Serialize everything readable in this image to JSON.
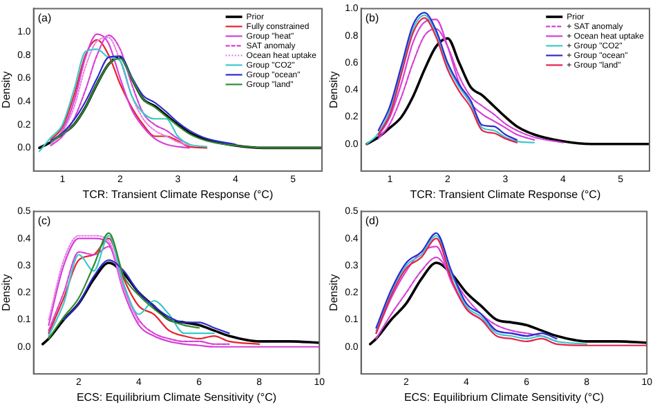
{
  "chart_data": [
    {
      "type": "line",
      "annotations": [
        "(a)"
      ],
      "xlabel": "TCR: Transient Climate Response (°C)",
      "ylabel": "Density",
      "legend": "top right",
      "xlim": [
        0.5,
        5.5
      ],
      "xticks": [
        1,
        2,
        3,
        4,
        5
      ],
      "ylim": [
        -0.2,
        1.2
      ],
      "yticks": [
        {
          "value": 0,
          "label": "0.0"
        },
        {
          "value": 0.2,
          "label": "0.2"
        },
        {
          "value": 0.4,
          "label": "0.4"
        },
        {
          "value": 0.6,
          "label": "0.6"
        },
        {
          "value": 0.8,
          "label": "0.8"
        },
        {
          "value": 1,
          "label": "1.0"
        }
      ],
      "x": [
        0.6,
        0.8,
        1.0,
        1.2,
        1.4,
        1.6,
        1.8,
        2.0,
        2.2,
        2.4,
        2.6,
        2.8,
        3.0,
        3.2,
        3.5,
        4.0,
        4.5,
        5.0,
        5.5
      ],
      "series": [
        {
          "name": "Prior",
          "color": "#000000",
          "values": [
            0,
            0.05,
            0.12,
            0.2,
            0.35,
            0.55,
            0.72,
            0.78,
            0.6,
            0.42,
            0.36,
            0.28,
            0.2,
            0.13,
            0.07,
            0.02,
            0,
            0,
            0
          ]
        },
        {
          "name": "Fully constrained",
          "color": "#e8202a",
          "values": [
            null,
            0.07,
            0.18,
            0.45,
            0.8,
            0.93,
            0.8,
            0.55,
            0.35,
            0.2,
            0.1,
            0.1,
            0.06,
            0.01,
            0,
            null,
            null,
            null,
            null
          ]
        },
        {
          "name": "Group \"heat\"",
          "color": "#d63fd6",
          "values": [
            null,
            0.04,
            0.15,
            0.4,
            0.78,
            0.98,
            0.9,
            0.6,
            0.33,
            0.18,
            0.08,
            0.03,
            0.01,
            0,
            null,
            null,
            null,
            null,
            null
          ]
        },
        {
          "name": "SAT anomaly",
          "color": "#d63fd6",
          "line_style": "dashed",
          "values": [
            null,
            0.02,
            0.1,
            0.25,
            0.5,
            0.8,
            0.97,
            0.85,
            0.55,
            0.3,
            0.2,
            0.15,
            0.08,
            0.03,
            null,
            null,
            null,
            null,
            null
          ]
        },
        {
          "name": "Ocean heat uptake",
          "color": "#e87fe8",
          "line_style": "dotted",
          "values": [
            null,
            0.03,
            0.14,
            0.35,
            0.7,
            0.92,
            0.95,
            0.75,
            0.45,
            0.25,
            0.15,
            0.1,
            0.05,
            0.02,
            null,
            null,
            null,
            null,
            null
          ]
        },
        {
          "name": "Group \"CO2\"",
          "color": "#3cc8c8",
          "values": [
            -0.03,
            0.09,
            0.2,
            0.5,
            0.83,
            0.85,
            0.78,
            0.75,
            0.45,
            0.3,
            0.25,
            0.25,
            0.1,
            0.03,
            0.01,
            null,
            null,
            null,
            null
          ]
        },
        {
          "name": "Group \"ocean\"",
          "color": "#2b2bd0",
          "values": [
            null,
            0.06,
            0.13,
            0.24,
            0.4,
            0.6,
            0.78,
            0.79,
            0.61,
            0.45,
            0.39,
            0.31,
            0.22,
            0.15,
            0.08,
            0.03,
            null,
            null,
            null
          ]
        },
        {
          "name": "Group \"land\"",
          "color": "#2e8b2e",
          "values": [
            null,
            0.05,
            0.12,
            0.2,
            0.35,
            0.55,
            0.72,
            0.77,
            0.6,
            0.42,
            0.35,
            0.27,
            0.19,
            0.12,
            0.06,
            0.02,
            0,
            0,
            0
          ]
        }
      ]
    },
    {
      "type": "line",
      "annotations": [
        "(b)"
      ],
      "xlabel": "TCR: Transient Climate Response (°C)",
      "ylabel": "Density",
      "legend": "top right",
      "xlim": [
        0.5,
        5.5
      ],
      "xticks": [
        1,
        2,
        3,
        4,
        5
      ],
      "ylim": [
        -0.2,
        1.0
      ],
      "yticks": [
        {
          "value": 0,
          "label": "0.0"
        },
        {
          "value": 0.2,
          "label": "0.2"
        },
        {
          "value": 0.4,
          "label": "0.4"
        },
        {
          "value": 0.6,
          "label": "0.6"
        },
        {
          "value": 0.8,
          "label": "0.8"
        },
        {
          "value": 1,
          "label": "1.0"
        }
      ],
      "x": [
        0.6,
        0.8,
        1.0,
        1.2,
        1.4,
        1.6,
        1.8,
        2.0,
        2.2,
        2.4,
        2.6,
        2.8,
        3.0,
        3.2,
        3.5,
        4.0,
        4.5,
        5.0,
        5.5
      ],
      "series": [
        {
          "name": "Prior",
          "color": "#000000",
          "values": [
            0,
            0.05,
            0.12,
            0.2,
            0.35,
            0.55,
            0.72,
            0.78,
            0.6,
            0.42,
            0.36,
            0.28,
            0.2,
            0.13,
            0.07,
            0.02,
            0,
            0,
            0
          ]
        },
        {
          "name": "+ SAT anomaly",
          "color": "#d63fd6",
          "line_style": "dashed",
          "values": [
            null,
            0.04,
            0.15,
            0.35,
            0.6,
            0.8,
            0.85,
            0.72,
            0.5,
            0.35,
            0.28,
            0.22,
            0.15,
            0.1,
            0.05,
            0.01,
            null,
            null,
            null
          ]
        },
        {
          "name": "+ Ocean heat uptake",
          "color": "#d63fd6",
          "values": [
            null,
            0.06,
            0.2,
            0.45,
            0.75,
            0.9,
            0.92,
            0.72,
            0.45,
            0.3,
            0.22,
            0.17,
            0.12,
            0.07,
            0.03,
            null,
            null,
            null,
            null
          ]
        },
        {
          "name": "+ Group \"CO2\"",
          "color": "#3cc8c8",
          "values": [
            0,
            0.08,
            0.25,
            0.55,
            0.85,
            0.95,
            0.82,
            0.58,
            0.42,
            0.3,
            0.12,
            0.1,
            0.05,
            0.02,
            0.01,
            null,
            null,
            null,
            null
          ]
        },
        {
          "name": "+ Group \"ocean\"",
          "color": "#2b2bd0",
          "values": [
            null,
            0.1,
            0.28,
            0.58,
            0.88,
            0.97,
            0.84,
            0.6,
            0.44,
            0.32,
            0.14,
            0.13,
            0.07,
            0.03,
            null,
            null,
            null,
            null,
            null
          ]
        },
        {
          "name": "+ Group \"land\"",
          "color": "#e8204a",
          "values": [
            null,
            0.07,
            0.22,
            0.52,
            0.82,
            0.93,
            0.79,
            0.55,
            0.39,
            0.27,
            0.1,
            0.08,
            0.04,
            0.01,
            null,
            null,
            null,
            null,
            null
          ]
        }
      ]
    },
    {
      "type": "line",
      "annotations": [
        "(c)"
      ],
      "xlabel": "ECS: Equilibrium Climate Sensitivity (°C)",
      "ylabel": "Density",
      "xlim": [
        0.5,
        10
      ],
      "xticks": [
        2,
        4,
        6,
        8,
        10
      ],
      "ylim": [
        -0.1,
        0.5
      ],
      "yticks": [
        {
          "value": 0,
          "label": "0.0"
        },
        {
          "value": 0.1,
          "label": "0.1"
        },
        {
          "value": 0.2,
          "label": "0.2"
        },
        {
          "value": 0.3,
          "label": "0.3"
        },
        {
          "value": 0.4,
          "label": "0.4"
        },
        {
          "value": 0.5,
          "label": "0.5"
        }
      ],
      "x": [
        0.8,
        1.0,
        1.5,
        2.0,
        2.5,
        3.0,
        3.5,
        4.0,
        4.5,
        5.0,
        5.5,
        6.0,
        6.5,
        7.0,
        8.0,
        9.0,
        10.0
      ],
      "series": [
        {
          "color": "#000000",
          "values": [
            0.01,
            0.03,
            0.1,
            0.16,
            0.25,
            0.31,
            0.27,
            0.2,
            0.15,
            0.1,
            0.09,
            0.08,
            0.06,
            0.04,
            0.02,
            0.02,
            0.015
          ]
        },
        {
          "color": "#e8202a",
          "values": [
            null,
            0.05,
            0.18,
            0.32,
            0.34,
            0.4,
            0.25,
            0.15,
            0.12,
            0.06,
            0.04,
            0.03,
            0.04,
            0.02,
            0.01,
            null,
            null
          ]
        },
        {
          "color": "#d63fd6",
          "values": [
            null,
            0.08,
            0.3,
            0.4,
            0.4,
            0.38,
            0.2,
            0.08,
            0.04,
            0.02,
            0.01,
            0.005,
            0,
            0,
            0,
            0,
            0
          ]
        },
        {
          "color": "#d63fd6",
          "line_style": "dashed",
          "values": [
            null,
            0.06,
            0.2,
            0.35,
            0.34,
            0.37,
            0.22,
            0.1,
            0.05,
            0.03,
            0.02,
            0.02,
            0.01,
            0.01,
            null,
            null,
            null
          ]
        },
        {
          "color": "#e87fe8",
          "line_style": "dotted",
          "values": [
            null,
            0.1,
            0.32,
            0.41,
            0.41,
            0.39,
            0.21,
            0.09,
            null,
            null,
            null,
            null,
            null,
            null,
            null,
            null,
            null
          ]
        },
        {
          "color": "#3cc8c8",
          "values": [
            null,
            0.04,
            0.16,
            0.34,
            0.28,
            0.41,
            0.23,
            0.12,
            0.17,
            0.12,
            0.05,
            0.05,
            0.05,
            null,
            null,
            null,
            null
          ]
        },
        {
          "color": "#2b2bd0",
          "values": [
            null,
            null,
            0.1,
            0.16,
            0.26,
            0.32,
            0.28,
            0.2,
            0.15,
            0.11,
            0.09,
            0.09,
            0.07,
            0.05,
            null,
            null,
            null
          ]
        },
        {
          "color": "#2e8b2e",
          "values": [
            null,
            0.03,
            0.11,
            0.18,
            0.3,
            0.42,
            0.26,
            0.19,
            0.14,
            0.1,
            0.08,
            0.07,
            null,
            null,
            null,
            null,
            null
          ]
        }
      ]
    },
    {
      "type": "line",
      "annotations": [
        "(d)"
      ],
      "xlabel": "ECS: Equilibrium Climate Sensitivity (°C)",
      "ylabel": "Density",
      "xlim": [
        0.5,
        10
      ],
      "xticks": [
        2,
        4,
        6,
        8,
        10
      ],
      "ylim": [
        -0.1,
        0.5
      ],
      "yticks": [
        {
          "value": 0,
          "label": "0.0"
        },
        {
          "value": 0.1,
          "label": "0.1"
        },
        {
          "value": 0.2,
          "label": "0.2"
        },
        {
          "value": 0.3,
          "label": "0.3"
        },
        {
          "value": 0.4,
          "label": "0.4"
        },
        {
          "value": 0.5,
          "label": "0.5"
        }
      ],
      "x": [
        0.8,
        1.0,
        1.5,
        2.0,
        2.5,
        3.0,
        3.5,
        4.0,
        4.5,
        5.0,
        5.5,
        6.0,
        6.5,
        7.0,
        8.0,
        9.0,
        10.0
      ],
      "series": [
        {
          "color": "#000000",
          "values": [
            0.01,
            0.03,
            0.1,
            0.16,
            0.25,
            0.31,
            0.27,
            0.2,
            0.15,
            0.1,
            0.09,
            0.08,
            0.06,
            0.04,
            0.02,
            0.02,
            0.015
          ]
        },
        {
          "color": "#d63fd6",
          "line_style": "dashed",
          "values": [
            null,
            0.03,
            0.12,
            0.2,
            0.28,
            0.33,
            0.26,
            0.18,
            0.12,
            0.08,
            0.06,
            0.05,
            0.04,
            0.02,
            null,
            null,
            null
          ]
        },
        {
          "color": "#d63fd6",
          "values": [
            null,
            0.05,
            0.18,
            0.28,
            0.35,
            0.37,
            0.24,
            0.14,
            0.1,
            0.06,
            0.05,
            0.04,
            null,
            null,
            null,
            null,
            null
          ]
        },
        {
          "color": "#3cc8c8",
          "values": [
            null,
            0.06,
            0.2,
            0.3,
            0.34,
            0.41,
            0.27,
            0.15,
            0.11,
            0.05,
            0.04,
            0.03,
            0.04,
            0.02,
            0.01,
            null,
            null
          ]
        },
        {
          "color": "#2b2bd0",
          "values": [
            null,
            0.07,
            0.21,
            0.31,
            0.35,
            0.42,
            0.28,
            0.16,
            0.12,
            0.06,
            0.05,
            0.04,
            0.05,
            0.03,
            null,
            null,
            null
          ]
        },
        {
          "color": "#e8204a",
          "values": [
            null,
            0.05,
            0.19,
            0.29,
            0.33,
            0.4,
            0.25,
            0.14,
            0.1,
            0.04,
            0.03,
            0.02,
            0.03,
            0.01,
            0.005,
            0.005,
            0.005
          ]
        }
      ]
    }
  ]
}
